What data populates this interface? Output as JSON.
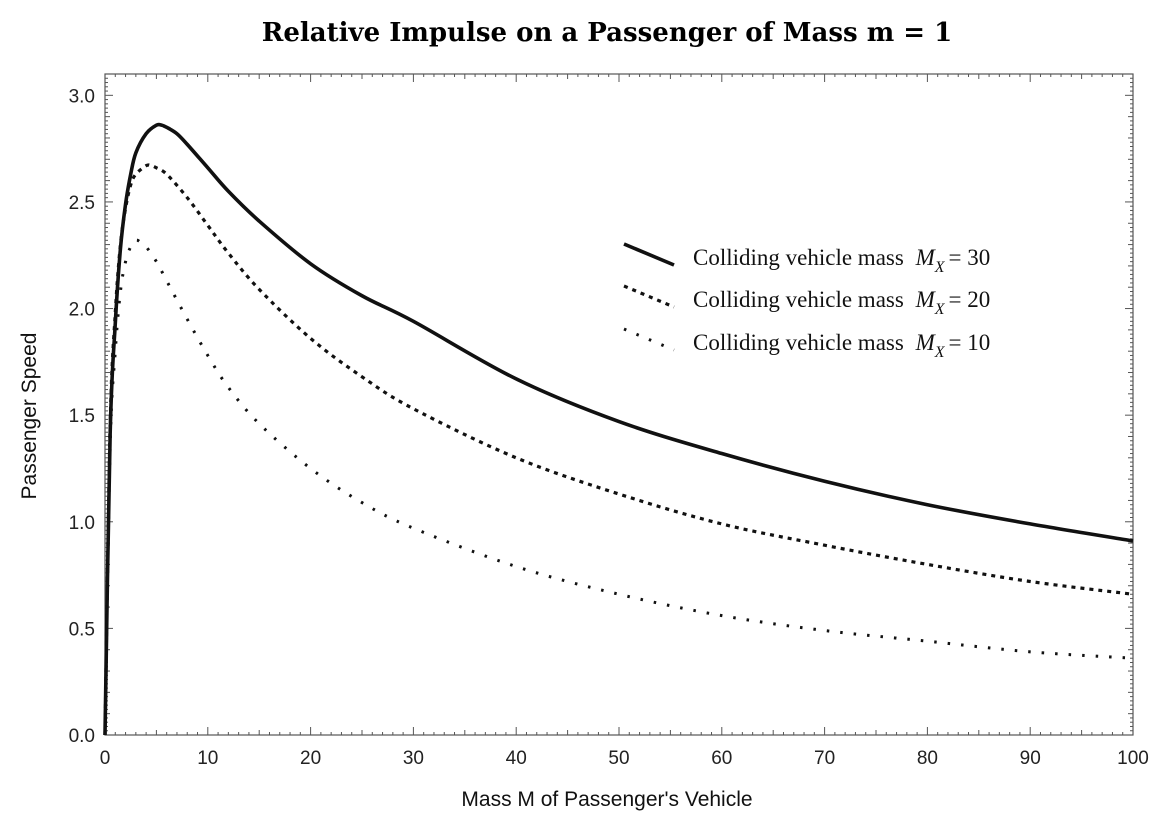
{
  "chart_data": {
    "type": "line",
    "title": "Relative Impulse on a Passenger of Mass m = 1",
    "xlabel": "Mass M of Passenger's Vehicle",
    "ylabel": "Passenger Speed",
    "xlim": [
      0,
      100
    ],
    "ylim": [
      0,
      3.1
    ],
    "xticks": [
      0,
      10,
      20,
      30,
      40,
      50,
      60,
      70,
      80,
      90,
      100
    ],
    "yticks": [
      0.0,
      0.5,
      1.0,
      1.5,
      2.0,
      2.5,
      3.0
    ],
    "ytick_labels": [
      "0.0",
      "0.5",
      "1.0",
      "1.5",
      "2.0",
      "2.5",
      "3.0"
    ],
    "grid": false,
    "legend_position": "upper-right",
    "series": [
      {
        "name": "Colliding vehicle mass M_X = 30",
        "legend_prefix": "Colliding vehicle mass",
        "legend_symbol": "M",
        "legend_subscript": "X",
        "legend_suffix": "= 30",
        "style": "solid",
        "x": [
          0,
          0.5,
          1,
          1.5,
          2,
          2.5,
          3,
          4,
          5,
          5.5,
          6,
          7,
          8,
          10,
          12,
          15,
          20,
          25,
          30,
          40,
          50,
          60,
          70,
          80,
          90,
          100
        ],
        "y": [
          0,
          1.41,
          1.93,
          2.28,
          2.49,
          2.63,
          2.73,
          2.82,
          2.86,
          2.86,
          2.85,
          2.82,
          2.77,
          2.66,
          2.55,
          2.41,
          2.21,
          2.06,
          1.94,
          1.67,
          1.47,
          1.32,
          1.19,
          1.08,
          0.99,
          0.91
        ]
      },
      {
        "name": "Colliding vehicle mass M_X = 20",
        "legend_prefix": "Colliding vehicle mass",
        "legend_symbol": "M",
        "legend_subscript": "X",
        "legend_suffix": "= 20",
        "style": "dashed",
        "x": [
          0,
          0.5,
          1,
          1.5,
          2,
          2.5,
          3,
          4,
          4.5,
          5,
          6,
          8,
          10,
          12,
          15,
          20,
          25,
          30,
          40,
          50,
          60,
          70,
          80,
          90,
          100
        ],
        "y": [
          0,
          1.45,
          1.98,
          2.3,
          2.47,
          2.58,
          2.63,
          2.67,
          2.67,
          2.66,
          2.63,
          2.52,
          2.39,
          2.26,
          2.09,
          1.86,
          1.68,
          1.53,
          1.3,
          1.13,
          0.99,
          0.89,
          0.8,
          0.72,
          0.66
        ]
      },
      {
        "name": "Colliding vehicle mass M_X = 10",
        "legend_prefix": "Colliding vehicle mass",
        "legend_symbol": "M",
        "legend_subscript": "X",
        "legend_suffix": "= 10",
        "style": "dotted",
        "x": [
          0,
          0.5,
          1,
          1.5,
          2,
          2.5,
          3,
          3.5,
          4,
          5,
          6,
          8,
          10,
          12,
          15,
          20,
          25,
          30,
          40,
          50,
          60,
          70,
          80,
          90,
          100
        ],
        "y": [
          0,
          1.35,
          1.8,
          2.08,
          2.22,
          2.29,
          2.32,
          2.31,
          2.29,
          2.22,
          2.13,
          1.95,
          1.78,
          1.63,
          1.46,
          1.25,
          1.09,
          0.97,
          0.79,
          0.66,
          0.56,
          0.49,
          0.44,
          0.39,
          0.36
        ]
      }
    ]
  }
}
